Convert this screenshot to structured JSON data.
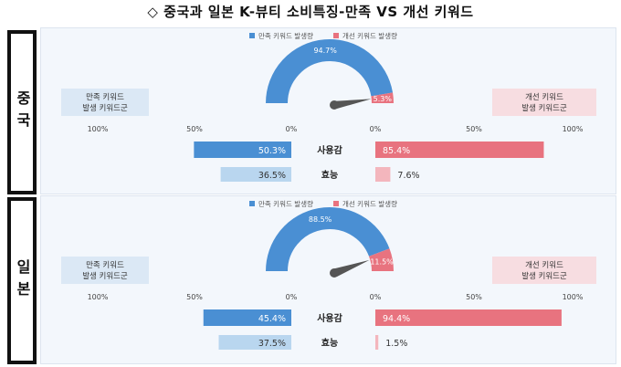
{
  "title": "◇ 중국과 일본 K-뷰티 소비특징-만족 VS 개선 키워드",
  "colors": {
    "satisfy": "#4a8fd3",
    "satisfy_light": "#b9d6ef",
    "improve": "#e8737f",
    "improve_light": "#f3b6bd",
    "satisfy_box": "#dbe8f5",
    "improve_box": "#f7dde1"
  },
  "chart_data": [
    {
      "type": "bar",
      "country": "중국",
      "legend": [
        "만족 키워드 발생량",
        "개선 키워드 발생량"
      ],
      "gauge": {
        "satisfy_label": "94.7%",
        "improve_label": "5.3%",
        "satisfy": 94.7,
        "improve": 5.3
      },
      "left_box": [
        "만족 키워드",
        "발생 키워드군"
      ],
      "right_box": [
        "개선 키워드",
        "발생 키워드군"
      ],
      "axis_ticks": [
        "100%",
        "50%",
        "0%",
        "0%",
        "50%",
        "100%"
      ],
      "categories": [
        "사용감",
        "효능"
      ],
      "series": [
        {
          "name": "만족 키워드 발생량",
          "values": [
            50.3,
            36.5
          ],
          "labels": [
            "50.3%",
            "36.5%"
          ]
        },
        {
          "name": "개선 키워드 발생량",
          "values": [
            85.4,
            7.6
          ],
          "labels": [
            "85.4%",
            "7.6%"
          ]
        }
      ]
    },
    {
      "type": "bar",
      "country": "일본",
      "legend": [
        "만족 키워드 발생량",
        "개선 키워드 발생량"
      ],
      "gauge": {
        "satisfy_label": "88.5%",
        "improve_label": "11.5%",
        "satisfy": 88.5,
        "improve": 11.5
      },
      "left_box": [
        "만족 키워드",
        "발생 키워드군"
      ],
      "right_box": [
        "개선 키워드",
        "발생 키워드군"
      ],
      "axis_ticks": [
        "100%",
        "50%",
        "0%",
        "0%",
        "50%",
        "100%"
      ],
      "categories": [
        "사용감",
        "효능"
      ],
      "series": [
        {
          "name": "만족 키워드 발생량",
          "values": [
            45.4,
            37.5
          ],
          "labels": [
            "45.4%",
            "37.5%"
          ]
        },
        {
          "name": "개선 키워드 발생량",
          "values": [
            94.4,
            1.5
          ],
          "labels": [
            "94.4%",
            "1.5%"
          ]
        }
      ]
    }
  ]
}
